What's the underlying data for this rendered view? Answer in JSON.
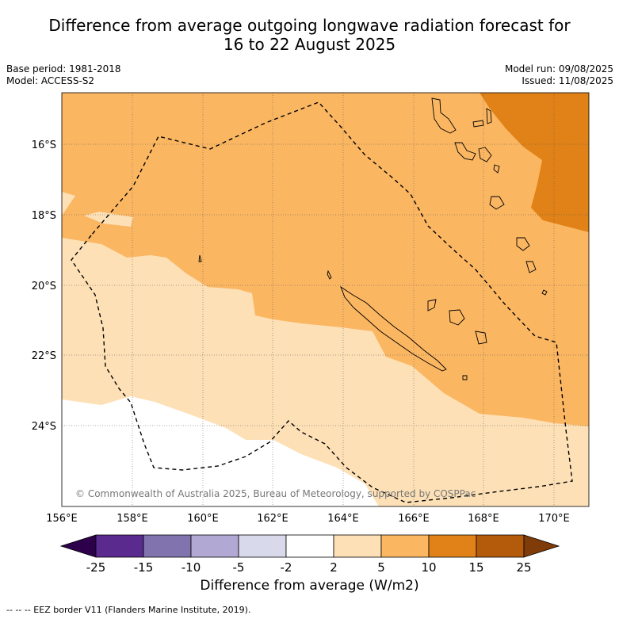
{
  "title_line1": "Difference from average outgoing longwave radiation forecast for",
  "title_line2": "16 to 22 August 2025",
  "base_period": "Base period: 1981-2018",
  "model": "Model: ACCESS-S2",
  "model_run": "Model run: 09/08/2025",
  "issued": "Issued: 11/08/2025",
  "copyright": "© Commonwealth of Australia 2025, Bureau of Meteorology, supported by COSPPac",
  "lat_labels": [
    "16°S",
    "18°S",
    "20°S",
    "22°S",
    "24°S"
  ],
  "lon_labels": [
    "156°E",
    "158°E",
    "160°E",
    "162°E",
    "164°E",
    "166°E",
    "168°E",
    "170°E"
  ],
  "colorbar": {
    "ticks": [
      "-25",
      "-15",
      "-10",
      "-5",
      "-2",
      "2",
      "5",
      "10",
      "15",
      "25"
    ],
    "colors": [
      "#5a2a8f",
      "#8073ae",
      "#b1a8d3",
      "#d9d9ec",
      "#ffffff",
      "#fde0b6",
      "#fbb662",
      "#e08217",
      "#b45a0b"
    ],
    "under_color": "#2d004b",
    "over_color": "#7f3b08",
    "label": "Difference from average (W/m2)"
  },
  "legend_eez": "--  --  -- EEZ border V11 (Flanders Marine Institute, 2019)."
}
